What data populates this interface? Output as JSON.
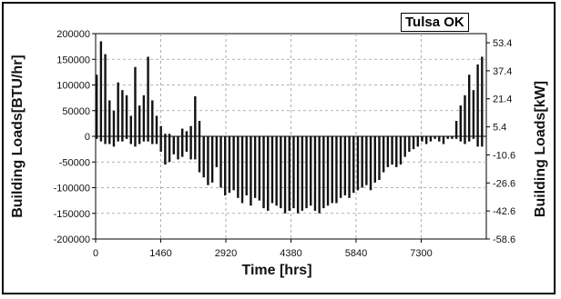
{
  "chart_data": {
    "type": "bar",
    "title": "",
    "inset_label": "Tulsa OK",
    "xlabel": "Time [hrs]",
    "ylabel": "Building Loads[BTU/hr]",
    "y2label": "Building Loads[kW]",
    "xlim": [
      0,
      8760
    ],
    "ylim": [
      -200000,
      200000
    ],
    "y2lim": [
      -58.6,
      58.6
    ],
    "x_ticks": [
      "0",
      "1460",
      "2920",
      "4380",
      "5840",
      "7300"
    ],
    "y_ticks": [
      "200000",
      "150000",
      "100000",
      "50000",
      "0",
      "-50000",
      "-100000",
      "-150000",
      "-200000"
    ],
    "y2_ticks": [
      "53.4",
      "37.4",
      "21.4",
      "5.4",
      "-10.6",
      "-26.6",
      "-42.6",
      "-58.6"
    ],
    "grid": true,
    "series": [
      {
        "x": [
          24,
          120,
          216,
          312,
          408,
          504,
          600,
          696,
          792,
          888,
          984,
          1080,
          1176,
          1272,
          1368,
          1464,
          1560,
          1656,
          1752,
          1848,
          1944,
          2040,
          2136,
          2232,
          2328,
          2424,
          2520,
          2616,
          2712,
          2808,
          2904,
          3000,
          3096,
          3192,
          3288,
          3384,
          3480,
          3576,
          3672,
          3768,
          3864,
          3960,
          4056,
          4152,
          4248,
          4344,
          4440,
          4536,
          4632,
          4728,
          4824,
          4920,
          5016,
          5112,
          5208,
          5304,
          5400,
          5496,
          5592,
          5688,
          5784,
          5880,
          5976,
          6072,
          6168,
          6264,
          6360,
          6456,
          6552,
          6648,
          6744,
          6840,
          6936,
          7032,
          7128,
          7224,
          7320,
          7416,
          7512,
          7608,
          7704,
          7800,
          7896,
          7992,
          8088,
          8184,
          8280,
          8376,
          8472,
          8568,
          8664
        ],
        "high": [
          120000,
          185000,
          160000,
          70000,
          50000,
          105000,
          90000,
          80000,
          40000,
          135000,
          60000,
          80000,
          155000,
          70000,
          40000,
          20000,
          5000,
          5000,
          0,
          0,
          15000,
          10000,
          20000,
          78000,
          30000,
          0,
          0,
          0,
          0,
          0,
          0,
          0,
          0,
          0,
          0,
          0,
          0,
          0,
          0,
          0,
          0,
          0,
          0,
          0,
          0,
          0,
          0,
          0,
          0,
          0,
          0,
          0,
          0,
          0,
          0,
          0,
          0,
          0,
          0,
          0,
          0,
          0,
          0,
          0,
          0,
          0,
          0,
          0,
          0,
          0,
          0,
          0,
          0,
          0,
          0,
          0,
          0,
          0,
          0,
          0,
          0,
          0,
          0,
          0,
          30000,
          60000,
          80000,
          120000,
          90000,
          140000,
          155000
        ],
        "low": [
          -5000,
          -10000,
          -15000,
          -15000,
          -20000,
          -10000,
          -10000,
          -5000,
          -15000,
          -20000,
          -15000,
          -10000,
          -10000,
          -15000,
          -15000,
          -30000,
          -55000,
          -50000,
          -35000,
          -45000,
          -40000,
          -30000,
          -45000,
          -45000,
          -70000,
          -80000,
          -95000,
          -90000,
          -60000,
          -100000,
          -115000,
          -110000,
          -105000,
          -120000,
          -130000,
          -115000,
          -135000,
          -120000,
          -125000,
          -140000,
          -145000,
          -130000,
          -135000,
          -140000,
          -150000,
          -145000,
          -140000,
          -150000,
          -145000,
          -140000,
          -135000,
          -145000,
          -150000,
          -140000,
          -135000,
          -130000,
          -130000,
          -120000,
          -115000,
          -120000,
          -110000,
          -105000,
          -100000,
          -95000,
          -105000,
          -90000,
          -85000,
          -70000,
          -60000,
          -55000,
          -60000,
          -55000,
          -40000,
          -30000,
          -25000,
          -20000,
          -10000,
          -15000,
          -10000,
          -5000,
          -10000,
          -15000,
          -5000,
          -5000,
          -5000,
          -10000,
          -15000,
          -10000,
          -5000,
          -20000,
          -20000
        ]
      }
    ]
  }
}
